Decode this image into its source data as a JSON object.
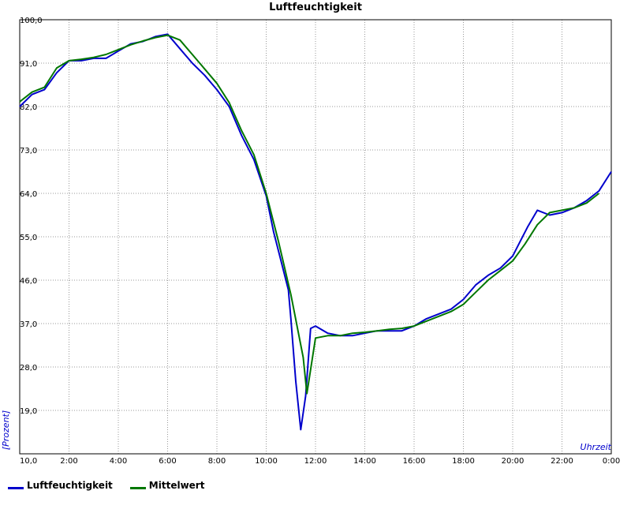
{
  "chart_data": {
    "type": "line",
    "title": "Luftfeuchtigkeit",
    "xlabel": "Uhrzeit",
    "ylabel": "[Prozent]",
    "xlim": [
      0,
      24
    ],
    "ylim": [
      10,
      100
    ],
    "grid": true,
    "legend_position": "bottom-left",
    "x_tick_labels": [
      "2:00",
      "4:00",
      "6:00",
      "8:00",
      "10:00",
      "12:00",
      "14:00",
      "16:00",
      "18:00",
      "20:00",
      "22:00",
      "0:00"
    ],
    "y_tick_labels": [
      "10,0",
      "19,0",
      "28,0",
      "37,0",
      "46,0",
      "55,0",
      "64,0",
      "73,0",
      "82,0",
      "91,0",
      "100,0"
    ],
    "series": [
      {
        "name": "Luftfeuchtigkeit",
        "color": "#0000cc",
        "x": [
          0.0,
          0.5,
          1.0,
          1.5,
          2.0,
          2.5,
          3.0,
          3.5,
          4.0,
          4.5,
          5.0,
          5.5,
          6.0,
          6.5,
          7.0,
          7.5,
          8.0,
          8.5,
          9.0,
          9.5,
          10.0,
          10.3,
          10.6,
          10.9,
          11.0,
          11.2,
          11.4,
          11.6,
          11.8,
          12.0,
          12.5,
          13.0,
          13.5,
          14.0,
          14.5,
          15.0,
          15.5,
          16.0,
          16.5,
          17.0,
          17.5,
          18.0,
          18.5,
          19.0,
          19.5,
          20.0,
          20.3,
          20.6,
          21.0,
          21.5,
          22.0,
          22.5,
          23.0,
          23.5,
          24.0
        ],
        "y": [
          82.0,
          84.5,
          85.5,
          89.0,
          91.5,
          91.5,
          92.0,
          92.0,
          93.5,
          95.0,
          95.5,
          96.5,
          97.0,
          94.0,
          91.0,
          88.5,
          85.5,
          82.0,
          76.0,
          71.0,
          63.5,
          56.0,
          50.0,
          44.0,
          38.0,
          25.0,
          15.0,
          22.0,
          36.0,
          36.5,
          35.0,
          34.5,
          34.5,
          35.0,
          35.5,
          35.5,
          35.5,
          36.5,
          38.0,
          39.0,
          40.0,
          42.0,
          45.0,
          47.0,
          48.5,
          51.0,
          54.0,
          57.0,
          60.5,
          59.5,
          60.0,
          61.0,
          62.5,
          64.5,
          68.5
        ]
      },
      {
        "name": "Mittelwert",
        "color": "#007700",
        "x": [
          0.0,
          0.5,
          1.0,
          1.5,
          2.0,
          2.5,
          3.0,
          3.5,
          4.0,
          4.5,
          5.0,
          5.5,
          6.0,
          6.5,
          7.0,
          7.5,
          8.0,
          8.5,
          9.0,
          9.5,
          10.0,
          10.5,
          11.0,
          11.5,
          11.65,
          12.0,
          12.5,
          13.0,
          13.5,
          14.0,
          14.5,
          15.0,
          15.5,
          16.0,
          16.5,
          17.0,
          17.5,
          18.0,
          18.5,
          19.0,
          19.5,
          20.0,
          20.5,
          21.0,
          21.5,
          22.0,
          22.5,
          23.0,
          23.5
        ],
        "y": [
          83.0,
          85.0,
          86.0,
          90.0,
          91.5,
          91.8,
          92.2,
          92.8,
          93.8,
          94.8,
          95.6,
          96.3,
          96.8,
          95.8,
          92.8,
          89.8,
          86.8,
          82.8,
          77.0,
          72.0,
          64.0,
          54.0,
          43.0,
          30.0,
          22.5,
          34.0,
          34.5,
          34.5,
          35.0,
          35.2,
          35.5,
          35.8,
          36.0,
          36.5,
          37.5,
          38.5,
          39.5,
          41.0,
          43.5,
          46.0,
          48.0,
          50.0,
          53.5,
          57.5,
          60.0,
          60.5,
          61.0,
          62.0,
          64.0
        ]
      }
    ]
  }
}
